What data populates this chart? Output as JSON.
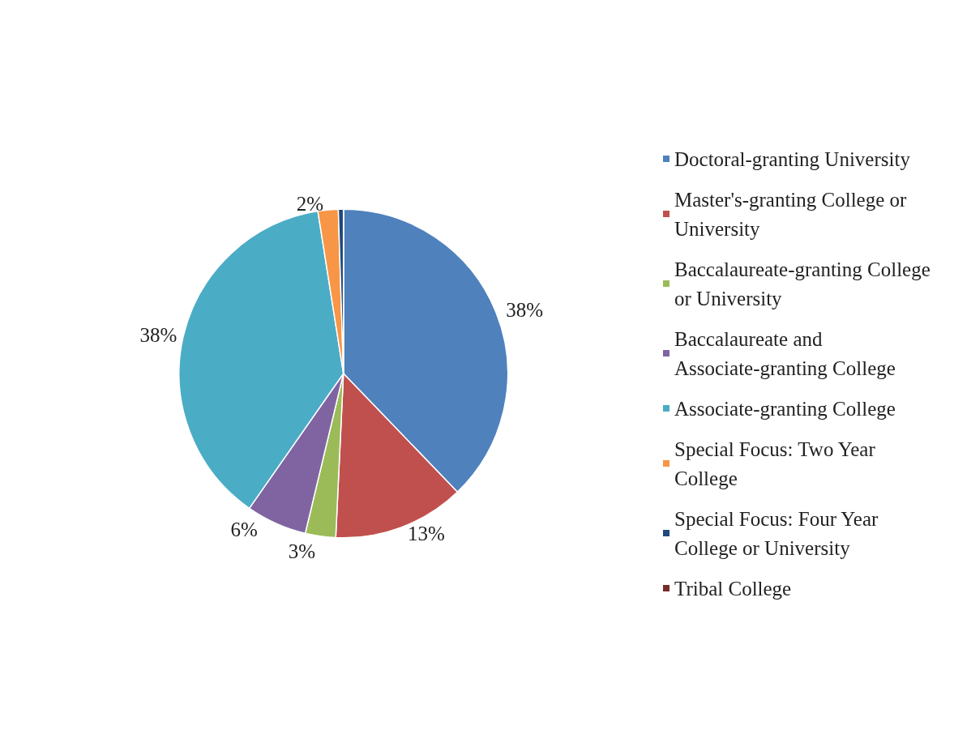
{
  "chart_data": {
    "type": "pie",
    "categories": [
      "Doctoral-granting University",
      "Master's-granting College or University",
      "Baccalaureate-granting College or University",
      "Baccalaureate and Associate-granting College",
      "Associate-granting College",
      "Special Focus: Two Year College",
      "Special Focus: Four Year College or University",
      "Tribal College"
    ],
    "values": [
      38,
      13,
      3,
      6,
      38,
      2,
      0.5,
      0
    ],
    "value_labels": [
      "38%",
      "13%",
      "3%",
      "6%",
      "38%",
      "2%",
      null,
      null
    ],
    "colors": [
      "#4f81bd",
      "#c0504d",
      "#9bbb59",
      "#8064a2",
      "#4bacc6",
      "#f79646",
      "#1f497d",
      "#772c2a"
    ],
    "legend": "right"
  }
}
